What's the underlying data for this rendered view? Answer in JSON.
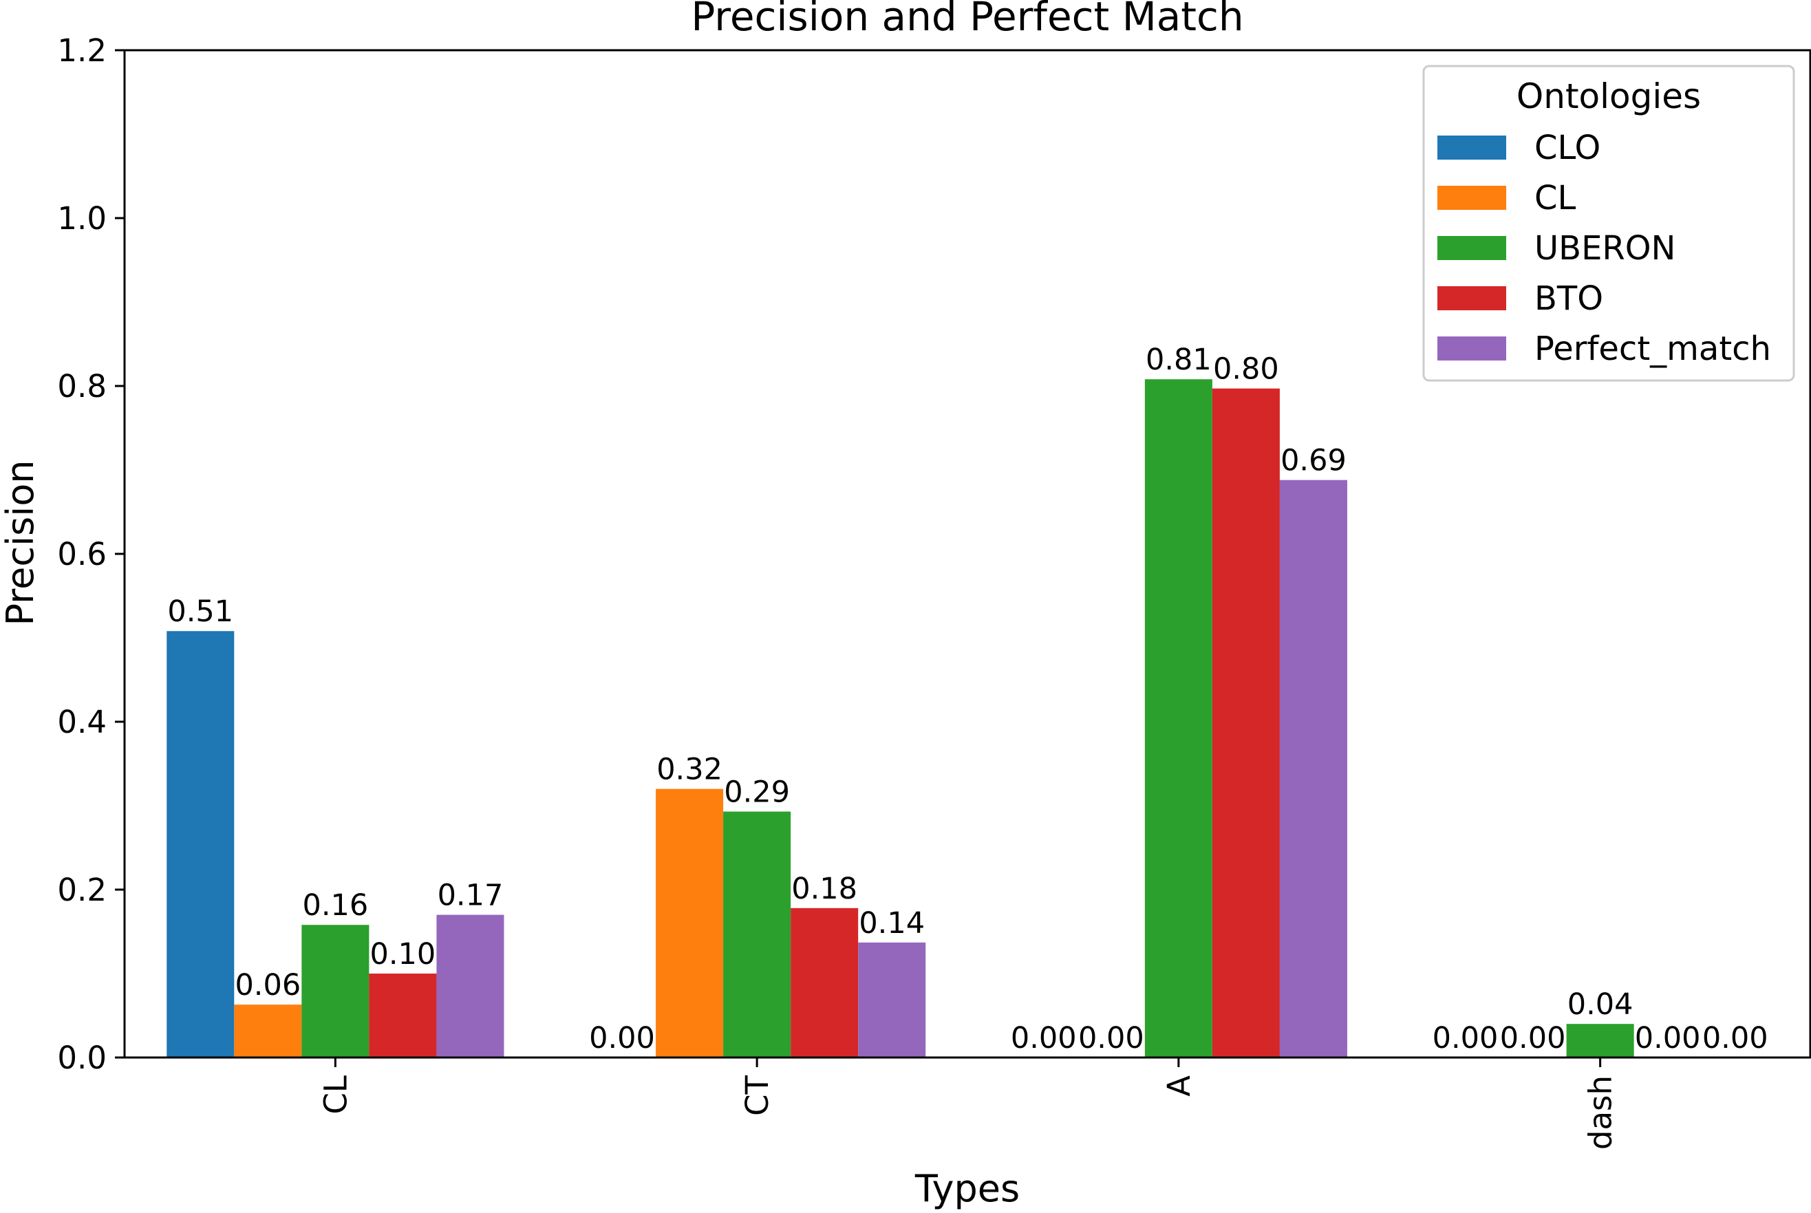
{
  "chart_data": {
    "type": "bar",
    "title": "Precision and Perfect Match",
    "xlabel": "Types",
    "ylabel": "Precision",
    "categories": [
      "CL",
      "CT",
      "A",
      "dash"
    ],
    "ylim": [
      0,
      1.2
    ],
    "yticks": [
      "0.0",
      "0.2",
      "0.4",
      "0.6",
      "0.8",
      "1.0",
      "1.2"
    ],
    "grid": false,
    "legend": {
      "title": "Ontologies",
      "placement": "top-right"
    },
    "series": [
      {
        "name": "CLO",
        "color": "#1f77b4",
        "values": [
          0.508,
          0.0,
          0.0,
          0.0
        ],
        "labels": [
          "0.51",
          "0.00",
          "0.00",
          "0.00"
        ]
      },
      {
        "name": "CL",
        "color": "#ff7f0e",
        "values": [
          0.063,
          0.32,
          0.0,
          0.0
        ],
        "labels": [
          "0.06",
          "0.32",
          "0.00",
          "0.00"
        ]
      },
      {
        "name": "UBERON",
        "color": "#2ca02c",
        "values": [
          0.158,
          0.293,
          0.808,
          0.04
        ],
        "labels": [
          "0.16",
          "0.29",
          "0.81",
          "0.04"
        ]
      },
      {
        "name": "BTO",
        "color": "#d62728",
        "values": [
          0.1,
          0.178,
          0.797,
          0.0
        ],
        "labels": [
          "0.10",
          "0.18",
          "0.80",
          "0.00"
        ]
      },
      {
        "name": "Perfect_match",
        "color": "#9467bd",
        "values": [
          0.17,
          0.137,
          0.688,
          0.0
        ],
        "labels": [
          "0.17",
          "0.14",
          "0.69",
          "0.00"
        ]
      }
    ]
  }
}
